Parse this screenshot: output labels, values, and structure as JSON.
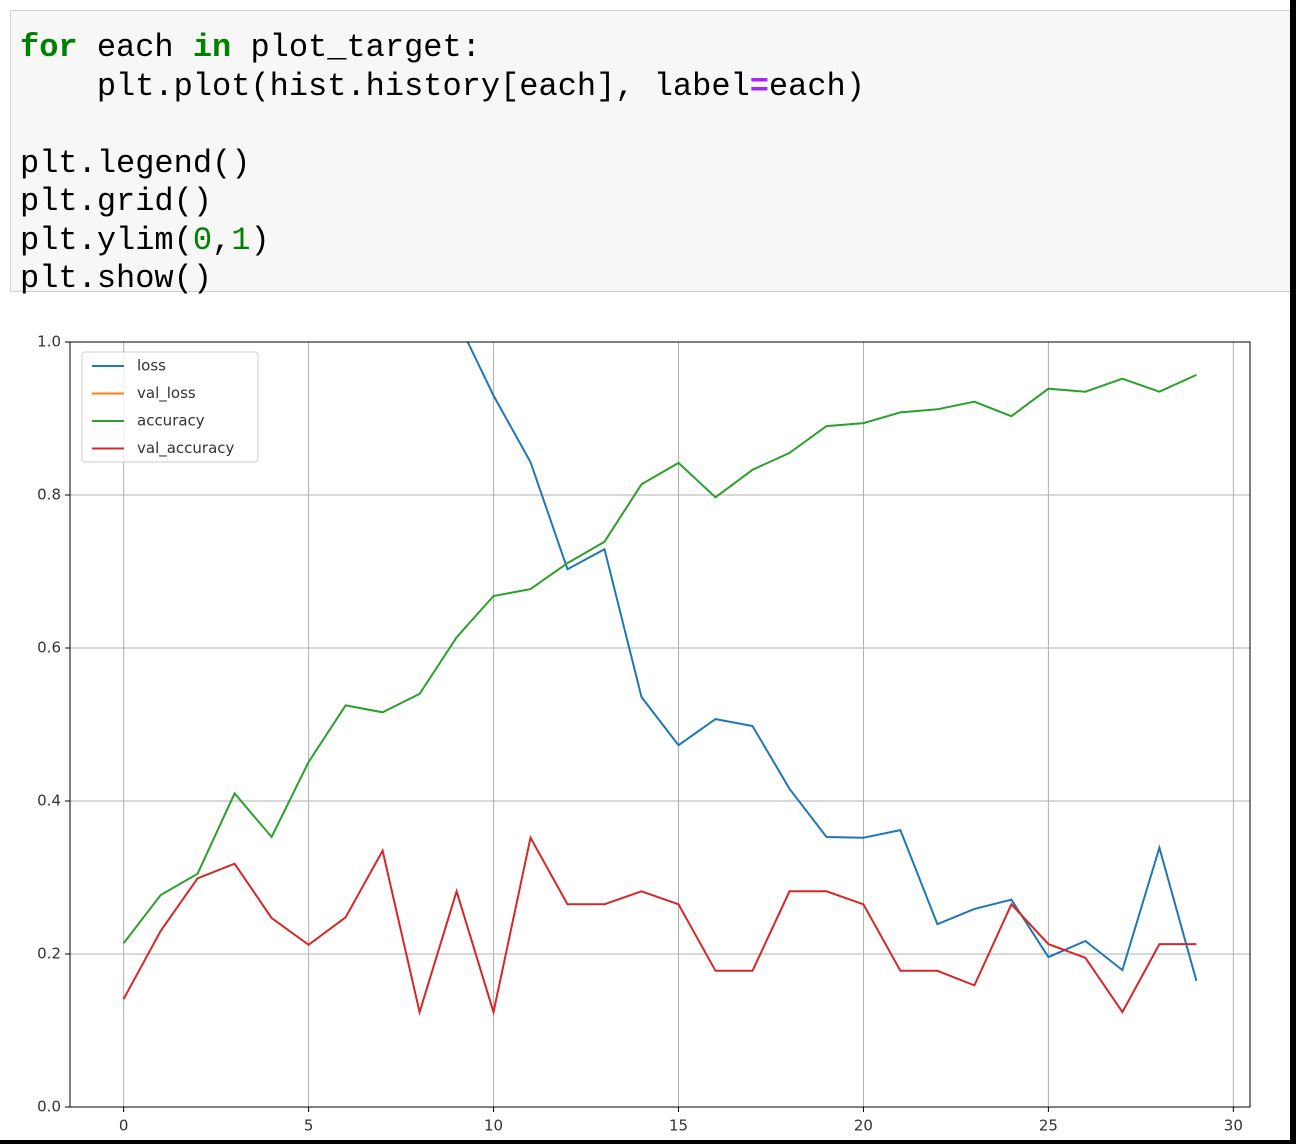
{
  "code": {
    "lines": [
      [
        {
          "text": "for",
          "style": "keyword"
        },
        {
          "text": " each ",
          "style": "plain"
        },
        {
          "text": "in",
          "style": "keyword"
        },
        {
          "text": " plot_target:",
          "style": "plain"
        }
      ],
      [
        {
          "text": "    plt.plot(hist.history[each], label",
          "style": "plain"
        },
        {
          "text": "=",
          "style": "operator"
        },
        {
          "text": "each)",
          "style": "plain"
        }
      ],
      [],
      [
        {
          "text": "plt.legend()",
          "style": "plain"
        }
      ],
      [
        {
          "text": "plt.grid()",
          "style": "plain"
        }
      ],
      [
        {
          "text": "plt.ylim(",
          "style": "plain"
        },
        {
          "text": "0",
          "style": "number"
        },
        {
          "text": ",",
          "style": "plain"
        },
        {
          "text": "1",
          "style": "number"
        },
        {
          "text": ")",
          "style": "plain"
        }
      ],
      [
        {
          "text": "plt.show()",
          "style": "plain"
        }
      ]
    ]
  },
  "chart_data": {
    "type": "line",
    "x": [
      0,
      1,
      2,
      3,
      4,
      5,
      6,
      7,
      8,
      9,
      10,
      11,
      12,
      13,
      14,
      15,
      16,
      17,
      18,
      19,
      20,
      21,
      22,
      23,
      24,
      25,
      26,
      27,
      28,
      29
    ],
    "series": [
      {
        "name": "loss",
        "color": "#1f77b4",
        "values": [
          null,
          null,
          null,
          null,
          null,
          null,
          null,
          null,
          null,
          1.03,
          0.93,
          0.843,
          0.703,
          0.729,
          0.536,
          0.473,
          0.507,
          0.498,
          0.416,
          0.353,
          0.352,
          0.362,
          0.239,
          0.259,
          0.271,
          0.196,
          0.217,
          0.179,
          0.339,
          0.165
        ]
      },
      {
        "name": "val_loss",
        "color": "#ff7f0e",
        "values": [
          null,
          null,
          null,
          null,
          null,
          null,
          null,
          null,
          null,
          null,
          null,
          null,
          null,
          null,
          null,
          null,
          null,
          null,
          null,
          null,
          null,
          null,
          null,
          null,
          null,
          null,
          null,
          null,
          null,
          null
        ]
      },
      {
        "name": "accuracy",
        "color": "#2ca02c",
        "values": [
          0.214,
          0.277,
          0.305,
          0.41,
          0.353,
          0.451,
          0.525,
          0.516,
          0.54,
          0.614,
          0.668,
          0.677,
          0.711,
          0.739,
          0.814,
          0.842,
          0.797,
          0.833,
          0.855,
          0.89,
          0.894,
          0.908,
          0.912,
          0.922,
          0.903,
          0.939,
          0.935,
          0.952,
          0.935,
          0.957
        ]
      },
      {
        "name": "val_accuracy",
        "color": "#d62728",
        "values": [
          0.141,
          0.23,
          0.299,
          0.318,
          0.247,
          0.212,
          0.248,
          0.335,
          0.124,
          0.282,
          0.124,
          0.352,
          0.265,
          0.265,
          0.282,
          0.265,
          0.178,
          0.178,
          0.282,
          0.282,
          0.265,
          0.178,
          0.178,
          0.159,
          0.265,
          0.213,
          0.195,
          0.124,
          0.213,
          0.213
        ]
      }
    ],
    "xlim": [
      -1.45,
      30.45
    ],
    "xticks": [
      0,
      5,
      10,
      15,
      20,
      25,
      30
    ],
    "ylim": [
      0,
      1
    ],
    "yticks": [
      {
        "value": 0,
        "label": "0.0"
      },
      0.2,
      0.4,
      0.6,
      0.8,
      {
        "value": 1,
        "label": "1.0"
      }
    ],
    "grid": true,
    "legend": "upper left"
  }
}
